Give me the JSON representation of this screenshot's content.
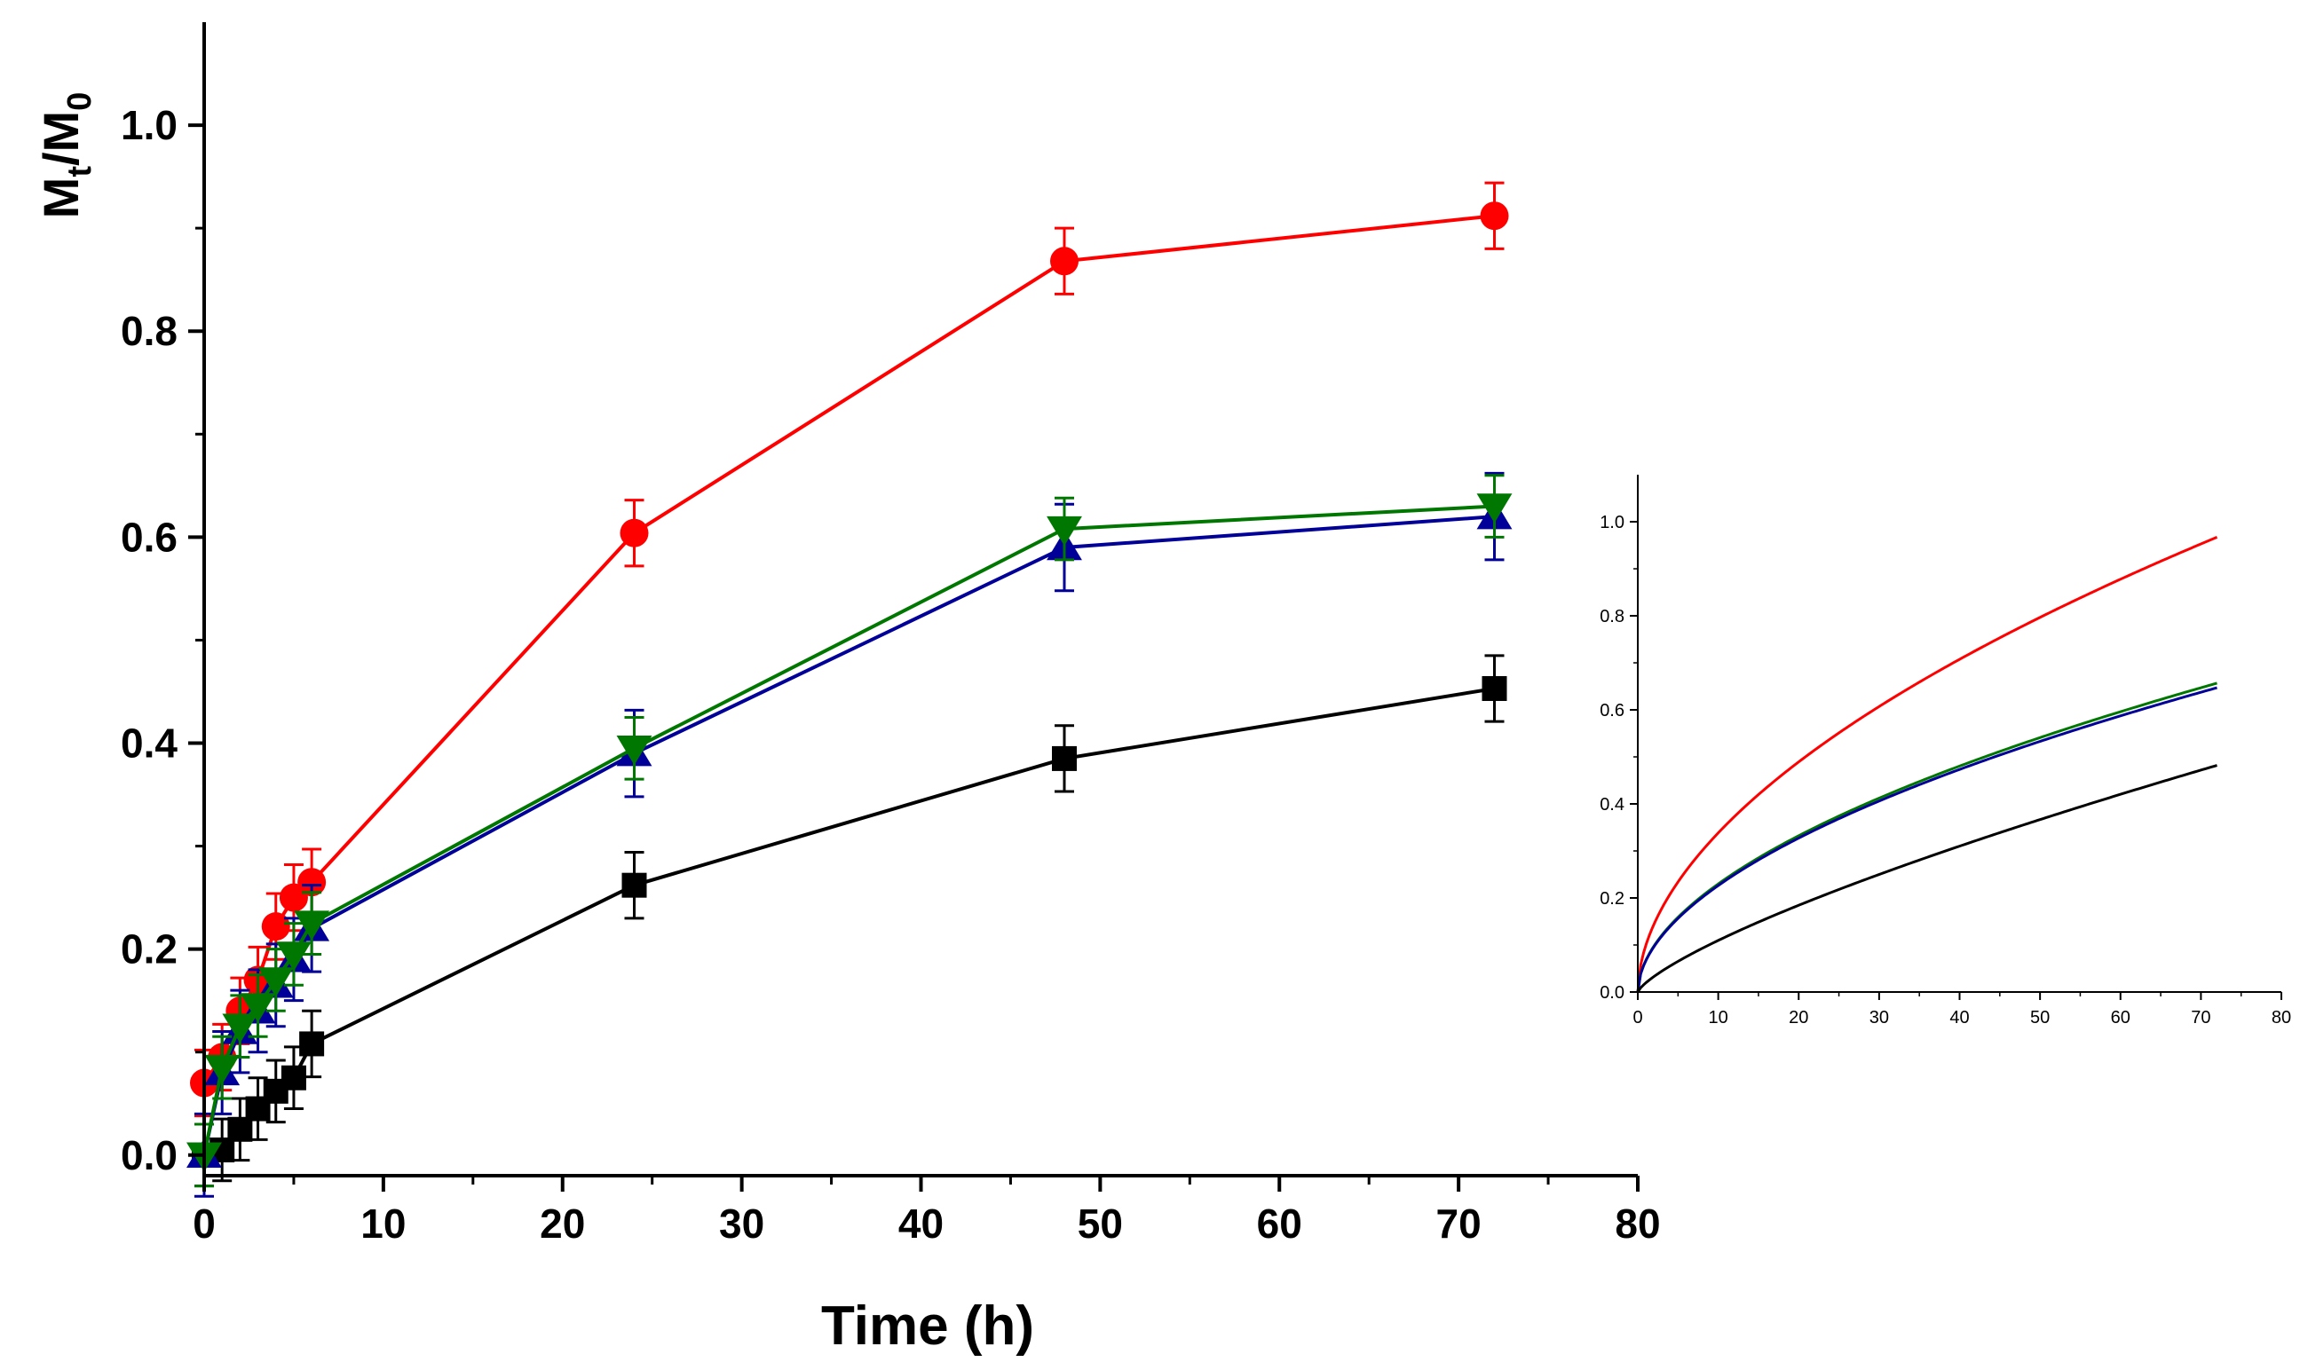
{
  "chart_data": [
    {
      "id": "main",
      "type": "line",
      "xlabel": "Time (h)",
      "ylabel": "Mt/M0",
      "ylabel_parts": {
        "main1": "M",
        "sub1": "t",
        "slash": "/",
        "main2": "M",
        "sub2": "0"
      },
      "xlim": [
        0,
        80
      ],
      "ylim": [
        -0.02,
        1.1
      ],
      "xticks": [
        0,
        10,
        20,
        30,
        40,
        50,
        60,
        70,
        80
      ],
      "yticks": [
        0.0,
        0.2,
        0.4,
        0.6,
        0.8,
        1.0
      ],
      "x": [
        0,
        1,
        2,
        3,
        4,
        5,
        6,
        24,
        48,
        72
      ],
      "series": [
        {
          "name": "black",
          "color": "#000000",
          "marker": "square",
          "values": [
            0.0,
            0.005,
            0.025,
            0.045,
            0.062,
            0.075,
            0.108,
            0.262,
            0.385,
            0.453
          ],
          "errors": [
            0.03,
            0.03,
            0.03,
            0.03,
            0.03,
            0.03,
            0.032,
            0.032,
            0.032,
            0.032
          ]
        },
        {
          "name": "red",
          "color": "#ff0000",
          "marker": "circle",
          "values": [
            0.07,
            0.095,
            0.14,
            0.17,
            0.222,
            0.25,
            0.265,
            0.604,
            0.868,
            0.912
          ],
          "errors": [
            0.032,
            0.032,
            0.032,
            0.032,
            0.032,
            0.032,
            0.032,
            0.032,
            0.032,
            0.032
          ]
        },
        {
          "name": "blue",
          "color": "#000099",
          "marker": "triangle-up",
          "values": [
            0.0,
            0.08,
            0.12,
            0.14,
            0.165,
            0.19,
            0.22,
            0.39,
            0.59,
            0.62
          ],
          "errors": [
            0.04,
            0.04,
            0.04,
            0.04,
            0.04,
            0.04,
            0.042,
            0.042,
            0.042,
            0.042
          ]
        },
        {
          "name": "green",
          "color": "#007700",
          "marker": "triangle-down",
          "values": [
            0.0,
            0.085,
            0.125,
            0.145,
            0.17,
            0.195,
            0.225,
            0.395,
            0.608,
            0.63
          ],
          "errors": [
            0.03,
            0.03,
            0.03,
            0.03,
            0.03,
            0.03,
            0.03,
            0.03,
            0.03,
            0.03
          ]
        }
      ]
    },
    {
      "id": "inset",
      "type": "line",
      "xlim": [
        0,
        80
      ],
      "ylim": [
        0,
        1.1
      ],
      "xticks": [
        0,
        10,
        20,
        30,
        40,
        50,
        60,
        70,
        80
      ],
      "yticks": [
        0.0,
        0.2,
        0.4,
        0.6,
        0.8,
        1.0
      ],
      "x_range": [
        0,
        72
      ],
      "model": "power_law",
      "series": [
        {
          "name": "red",
          "color": "#ff0000",
          "k": 0.0994,
          "n": 0.532
        },
        {
          "name": "green",
          "color": "#007700",
          "k": 0.0675,
          "n": 0.532
        },
        {
          "name": "blue",
          "color": "#000099",
          "k": 0.0665,
          "n": 0.532
        },
        {
          "name": "black",
          "color": "#000000",
          "k": 0.0195,
          "n": 0.75
        }
      ]
    }
  ]
}
